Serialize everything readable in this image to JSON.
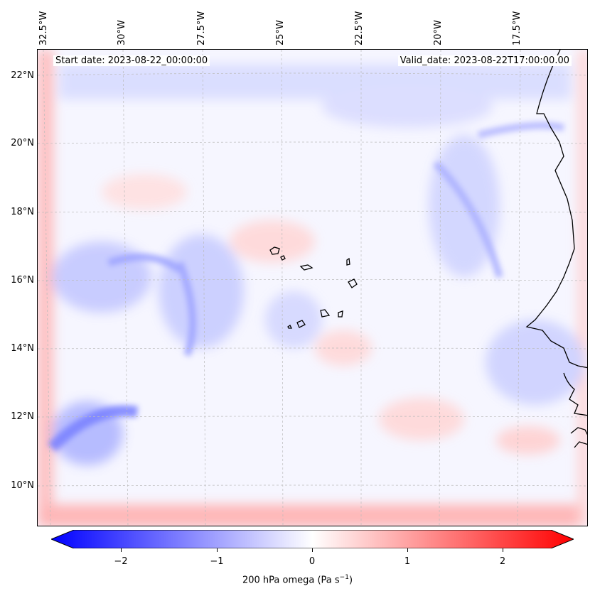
{
  "header": {
    "start_date": "Start date: 2023-08-22_00:00:00",
    "valid_date": "Valid_date: 2023-08-22T17:00:00.00"
  },
  "longitude_labels": [
    "32.5°W",
    "30°W",
    "27.5°W",
    "25°W",
    "22.5°W",
    "20°W",
    "17.5°W"
  ],
  "latitude_labels": [
    "22°N",
    "20°N",
    "18°N",
    "16°N",
    "14°N",
    "12°N",
    "10°N"
  ],
  "colorbar": {
    "ticks": [
      "−2",
      "−1",
      "0",
      "1",
      "2"
    ],
    "label_prefix": "200 hPa omega (Pa s",
    "label_exp": "−1",
    "label_suffix": ")",
    "range": [
      -2.75,
      2.75
    ],
    "colors": {
      "negative": "#0000ff",
      "zero": "#ffffff",
      "positive": "#ff0000"
    }
  },
  "map": {
    "region": "Eastern tropical Atlantic / West Africa",
    "coastline_color": "#000000",
    "gridline_color": "#bbbbbb",
    "field": "200 hPa omega"
  }
}
